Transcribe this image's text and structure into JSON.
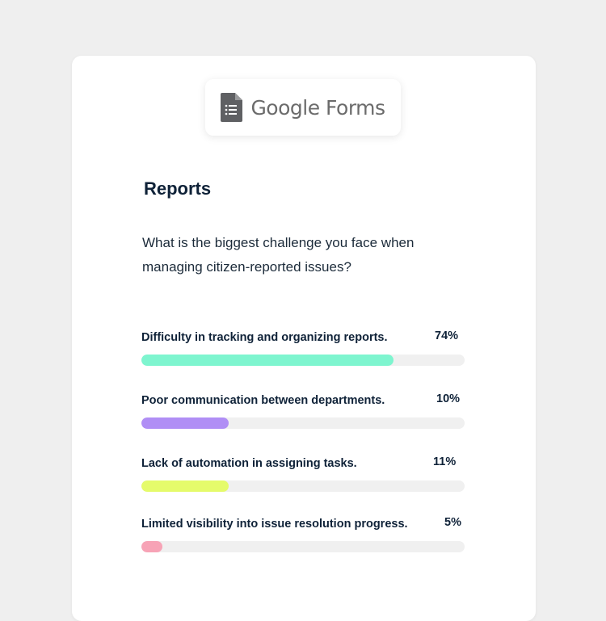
{
  "logo": {
    "text": "Google Forms",
    "icon": "google-forms-icon",
    "icon_color": "#5f6063"
  },
  "report": {
    "title": "Reports",
    "question": "What is the biggest challenge you face when managing citizen-reported issues?"
  },
  "options": [
    {
      "label": "Difficulty in tracking and organizing reports.",
      "percent_label": "74%",
      "fill_fraction": 0.78,
      "color": "#7ef5cf"
    },
    {
      "label": "Poor communication between departments.",
      "percent_label": "10%",
      "fill_fraction": 0.27,
      "color": "#b08ef5"
    },
    {
      "label": "Lack of automation in assigning tasks.",
      "percent_label": "11%",
      "fill_fraction": 0.27,
      "color": "#e5fb6b"
    },
    {
      "label": "Limited visibility into issue resolution progress.",
      "percent_label": "5%",
      "fill_fraction": 0.065,
      "color": "#f7a3b6"
    }
  ]
}
